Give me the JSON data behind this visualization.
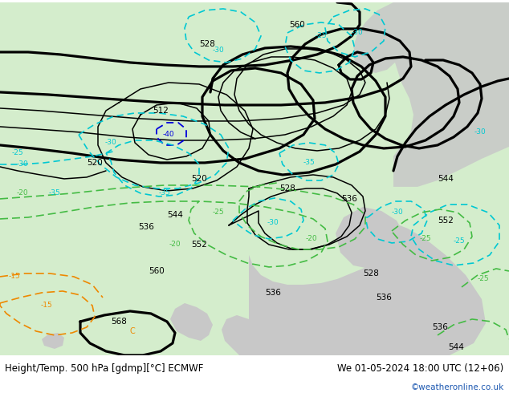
{
  "title_left": "Height/Temp. 500 hPa [gdmp][°C] ECMWF",
  "title_right": "We 01-05-2024 18:00 UTC (12+06)",
  "credit": "©weatheronline.co.uk",
  "bg_white": "#ffffff",
  "map_green": "#d4edcc",
  "gray_land": "#c8c8c8",
  "coast_color": "#aaaaaa",
  "hgt_color": "#000000",
  "temp_cyan": "#00c8d2",
  "temp_blue": "#0000dd",
  "temp_green": "#44bb44",
  "temp_orange": "#ee8800",
  "lw_thin": 1.1,
  "lw_bold": 2.3,
  "title_fs": 8.5,
  "credit_fs": 7.5,
  "credit_color": "#1a56b0"
}
